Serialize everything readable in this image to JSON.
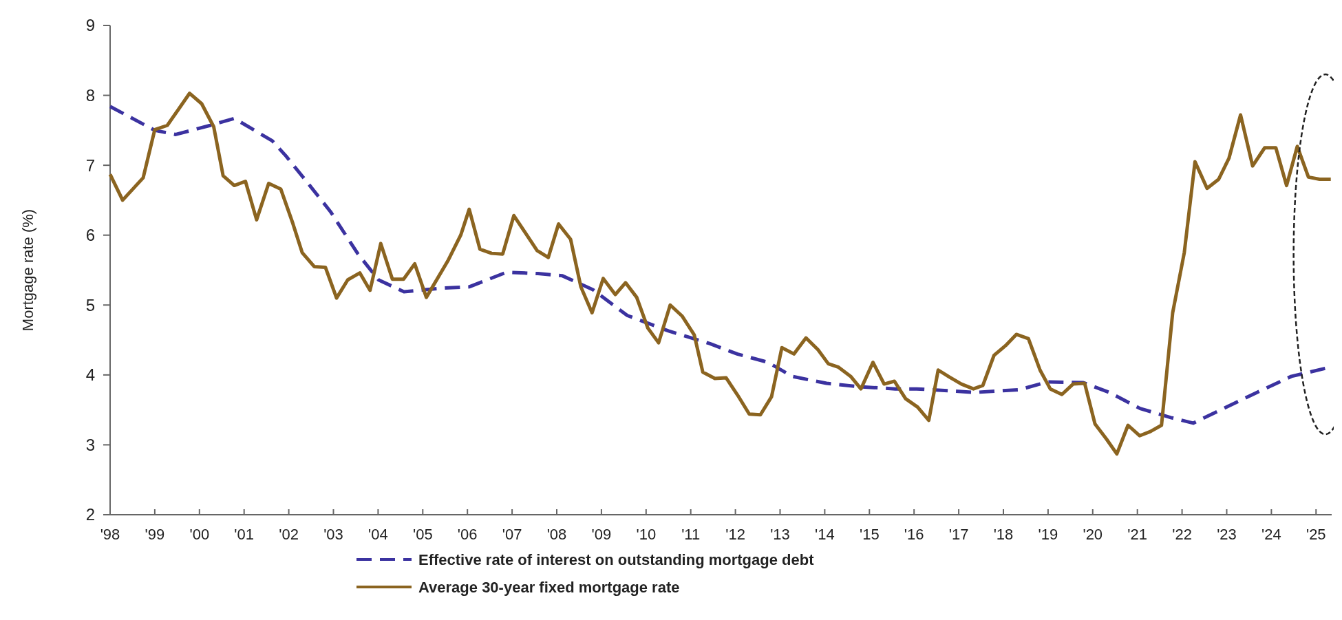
{
  "chart_data": {
    "type": "line",
    "ylabel": "Mortgage rate (%)",
    "xlim": [
      1998,
      2025.35
    ],
    "xticks": [
      {
        "value": 1998,
        "label": "'98"
      },
      {
        "value": 1999,
        "label": "'99"
      },
      {
        "value": 2000,
        "label": "'00"
      },
      {
        "value": 2001,
        "label": "'01"
      },
      {
        "value": 2002,
        "label": "'02"
      },
      {
        "value": 2003,
        "label": "'03"
      },
      {
        "value": 2004,
        "label": "'04"
      },
      {
        "value": 2005,
        "label": "'05"
      },
      {
        "value": 2006,
        "label": "'06"
      },
      {
        "value": 2007,
        "label": "'07"
      },
      {
        "value": 2008,
        "label": "'08"
      },
      {
        "value": 2009,
        "label": "'09"
      },
      {
        "value": 2010,
        "label": "'10"
      },
      {
        "value": 2011,
        "label": "'11"
      },
      {
        "value": 2012,
        "label": "'12"
      },
      {
        "value": 2013,
        "label": "'13"
      },
      {
        "value": 2014,
        "label": "'14"
      },
      {
        "value": 2015,
        "label": "'15"
      },
      {
        "value": 2016,
        "label": "'16"
      },
      {
        "value": 2017,
        "label": "'17"
      },
      {
        "value": 2018,
        "label": "'18"
      },
      {
        "value": 2019,
        "label": "'19"
      },
      {
        "value": 2020,
        "label": "'20"
      },
      {
        "value": 2021,
        "label": "'21"
      },
      {
        "value": 2022,
        "label": "'22"
      },
      {
        "value": 2023,
        "label": "'23"
      },
      {
        "value": 2024,
        "label": "'24"
      },
      {
        "value": 2025,
        "label": "'25"
      }
    ],
    "ylim": [
      2,
      9
    ],
    "yticks": [
      2,
      3,
      4,
      5,
      6,
      7,
      8,
      9
    ],
    "grid": false,
    "legend": "bottom",
    "marker": "none",
    "series": [
      {
        "name": "Effective rate of interest on outstanding mortgage debt",
        "color": "#3b32a0",
        "line_style": "dashed",
        "x": [
          1998,
          1999,
          1999.47,
          2000.24,
          2000.78,
          2001.63,
          2001.94,
          2002.47,
          2002.93,
          2003.55,
          2004.01,
          2004.58,
          2005.39,
          2006.04,
          2006.88,
          2007.58,
          2008.12,
          2008.81,
          2009.58,
          2010.5,
          2011.42,
          2012.04,
          2012.73,
          2013.27,
          2014.04,
          2014.81,
          2015.58,
          2016.06,
          2017.37,
          2018.37,
          2018.98,
          2019.79,
          2020.37,
          2021.06,
          2021.75,
          2022.25,
          2022.9,
          2023.68,
          2024.45,
          2025.25
        ],
        "values": [
          7.84,
          7.5,
          7.44,
          7.57,
          7.67,
          7.35,
          7.13,
          6.71,
          6.34,
          5.73,
          5.36,
          5.19,
          5.24,
          5.26,
          5.47,
          5.45,
          5.42,
          5.22,
          4.85,
          4.63,
          4.45,
          4.3,
          4.18,
          3.98,
          3.88,
          3.83,
          3.8,
          3.8,
          3.75,
          3.79,
          3.9,
          3.89,
          3.75,
          3.52,
          3.39,
          3.31,
          3.51,
          3.75,
          3.98,
          4.1
        ]
      },
      {
        "name": "Average 30-year fixed mortgage rate",
        "color": "#8b6420",
        "line_style": "solid",
        "x": [
          1998,
          1998.28,
          1998.74,
          1999,
          1999.28,
          1999.78,
          2000.05,
          2000.32,
          2000.53,
          2000.78,
          2001.03,
          2001.28,
          2001.55,
          2001.82,
          2002.09,
          2002.3,
          2002.57,
          2002.82,
          2003.07,
          2003.32,
          2003.59,
          2003.82,
          2004.06,
          2004.32,
          2004.57,
          2004.82,
          2005.08,
          2005.56,
          2005.85,
          2006.04,
          2006.28,
          2006.54,
          2006.79,
          2007.04,
          2007.31,
          2007.56,
          2007.81,
          2008.04,
          2008.31,
          2008.54,
          2008.79,
          2009.04,
          2009.31,
          2009.54,
          2009.79,
          2010.04,
          2010.28,
          2010.54,
          2010.81,
          2011.08,
          2011.27,
          2011.54,
          2011.79,
          2012.05,
          2012.31,
          2012.56,
          2012.81,
          2013.04,
          2013.31,
          2013.58,
          2013.85,
          2014.08,
          2014.31,
          2014.58,
          2014.81,
          2015.08,
          2015.33,
          2015.56,
          2015.81,
          2016.08,
          2016.33,
          2016.54,
          2016.79,
          2017.06,
          2017.33,
          2017.54,
          2017.79,
          2018.05,
          2018.29,
          2018.56,
          2018.82,
          2019.05,
          2019.31,
          2019.56,
          2019.82,
          2020.05,
          2020.31,
          2020.54,
          2020.79,
          2021.05,
          2021.29,
          2021.54,
          2021.79,
          2022.05,
          2022.29,
          2022.56,
          2022.82,
          2023.05,
          2023.31,
          2023.58,
          2023.85,
          2024.1,
          2024.34,
          2024.58,
          2024.83,
          2025.08,
          2025.33
        ],
        "values": [
          6.87,
          6.5,
          6.82,
          7.51,
          7.57,
          8.03,
          7.88,
          7.55,
          6.85,
          6.71,
          6.77,
          6.22,
          6.74,
          6.66,
          6.17,
          5.75,
          5.55,
          5.54,
          5.1,
          5.36,
          5.46,
          5.21,
          5.88,
          5.37,
          5.37,
          5.59,
          5.11,
          5.63,
          6.0,
          6.37,
          5.8,
          5.74,
          5.73,
          6.28,
          6.02,
          5.78,
          5.68,
          6.16,
          5.94,
          5.26,
          4.89,
          5.38,
          5.15,
          5.32,
          5.11,
          4.67,
          4.46,
          5.0,
          4.84,
          4.57,
          4.04,
          3.95,
          3.96,
          3.71,
          3.44,
          3.43,
          3.69,
          4.39,
          4.3,
          4.53,
          4.36,
          4.16,
          4.11,
          3.98,
          3.8,
          4.18,
          3.87,
          3.91,
          3.66,
          3.54,
          3.35,
          4.07,
          3.97,
          3.87,
          3.8,
          3.85,
          4.28,
          4.42,
          4.58,
          4.52,
          4.07,
          3.8,
          3.72,
          3.87,
          3.88,
          3.3,
          3.08,
          2.87,
          3.28,
          3.13,
          3.19,
          3.28,
          4.89,
          5.75,
          7.05,
          6.67,
          6.8,
          7.1,
          7.72,
          6.99,
          7.25,
          7.25,
          6.71,
          7.27,
          6.83,
          6.8,
          6.8
        ]
      }
    ]
  }
}
